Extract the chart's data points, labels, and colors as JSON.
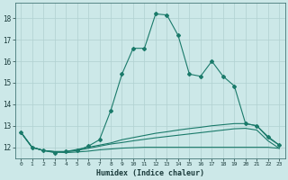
{
  "xlabel": "Humidex (Indice chaleur)",
  "bg_color": "#cce8e8",
  "line_color": "#1a7a6a",
  "grid_color": "#b0d0d0",
  "xlim": [
    -0.5,
    23.5
  ],
  "ylim": [
    11.5,
    18.7
  ],
  "yticks": [
    12,
    13,
    14,
    15,
    16,
    17,
    18
  ],
  "xticks": [
    0,
    1,
    2,
    3,
    4,
    5,
    6,
    7,
    8,
    9,
    10,
    11,
    12,
    13,
    14,
    15,
    16,
    17,
    18,
    19,
    20,
    21,
    22,
    23
  ],
  "line1_x": [
    0,
    1,
    2,
    3,
    4,
    5,
    6,
    7,
    8,
    9,
    10,
    11,
    12,
    13,
    14,
    15,
    16,
    17,
    18,
    19,
    20,
    21,
    22,
    23
  ],
  "line1_y": [
    12.7,
    12.0,
    11.85,
    11.75,
    11.8,
    11.85,
    12.05,
    12.35,
    13.7,
    15.4,
    16.6,
    16.6,
    18.2,
    18.15,
    17.2,
    15.4,
    15.3,
    16.0,
    15.3,
    14.85,
    13.1,
    13.0,
    12.5,
    12.1
  ],
  "line2_x": [
    0,
    1,
    2,
    3,
    4,
    5,
    6,
    7,
    8,
    9,
    10,
    11,
    12,
    13,
    14,
    15,
    16,
    17,
    18,
    19,
    20,
    21,
    22,
    23
  ],
  "line2_y": [
    12.7,
    12.0,
    11.85,
    11.8,
    11.8,
    11.9,
    12.0,
    12.1,
    12.2,
    12.35,
    12.45,
    12.55,
    12.65,
    12.72,
    12.8,
    12.87,
    12.93,
    13.0,
    13.05,
    13.1,
    13.1,
    13.0,
    12.45,
    12.1
  ],
  "line3_x": [
    0,
    1,
    2,
    3,
    4,
    5,
    6,
    7,
    8,
    9,
    10,
    11,
    12,
    13,
    14,
    15,
    16,
    17,
    18,
    19,
    20,
    21,
    22,
    23
  ],
  "line3_y": [
    12.7,
    12.0,
    11.85,
    11.8,
    11.8,
    11.85,
    11.95,
    12.05,
    12.15,
    12.22,
    12.3,
    12.37,
    12.44,
    12.5,
    12.56,
    12.62,
    12.68,
    12.74,
    12.8,
    12.86,
    12.88,
    12.8,
    12.3,
    11.95
  ],
  "line4_x": [
    0,
    1,
    2,
    3,
    4,
    5,
    6,
    7,
    8,
    9,
    10,
    11,
    12,
    13,
    14,
    15,
    16,
    17,
    18,
    19,
    20,
    21,
    22,
    23
  ],
  "line4_y": [
    12.7,
    12.0,
    11.85,
    11.78,
    11.75,
    11.78,
    11.82,
    11.88,
    11.92,
    11.96,
    11.98,
    12.0,
    12.0,
    12.0,
    12.0,
    12.0,
    12.0,
    12.0,
    12.0,
    12.0,
    12.0,
    12.0,
    12.0,
    11.95
  ]
}
